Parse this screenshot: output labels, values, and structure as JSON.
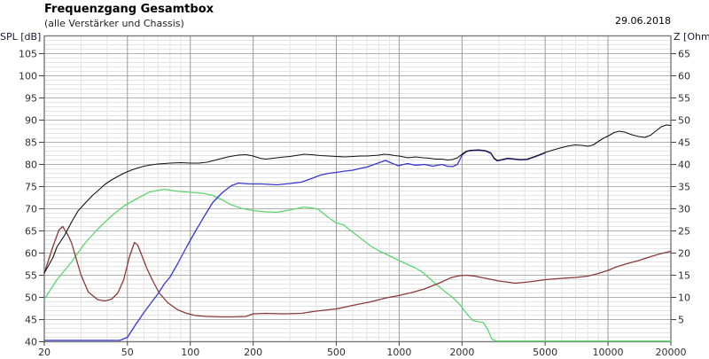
{
  "header": {
    "title": "Frequenzgang Gesamtbox",
    "subtitle": "(alle Verstärker und Chassis)",
    "date": "29.06.2018"
  },
  "axes": {
    "left_label": "SPL [dB]",
    "right_label": "Z [Ohm]"
  },
  "colors": {
    "curve_black": "#111111",
    "curve_blue": "#3838cf",
    "curve_green": "#5cd66e",
    "curve_red": "#8b3838",
    "grid_minor": "#e4e4e4",
    "grid_major_h": "#b2b2b2",
    "grid_major_v": "#9a9a9a",
    "frame": "#7a7a7a",
    "tick_text": "#2e2e2e"
  },
  "chart_data": {
    "type": "line",
    "title": "Frequenzgang Gesamtbox",
    "subtitle": "(alle Verstärker und Chassis)",
    "grid": true,
    "legend": "none",
    "x_axis": {
      "scale": "log",
      "min": 20,
      "max": 20000,
      "ticks": [
        20,
        50,
        100,
        200,
        500,
        1000,
        2000,
        5000,
        10000,
        20000
      ],
      "tick_labels": [
        "20",
        "50",
        "100",
        "200",
        "500",
        "1000",
        "2000",
        "5000",
        "10000",
        "20000"
      ],
      "minor_gridlines": [
        30,
        40,
        60,
        70,
        80,
        90,
        300,
        400,
        600,
        700,
        800,
        900,
        3000,
        4000,
        6000,
        7000,
        8000,
        9000
      ]
    },
    "y_axis_left": {
      "label": "SPL [dB]",
      "min": 40,
      "max": 109,
      "ticks": [
        40,
        45,
        50,
        55,
        60,
        65,
        70,
        75,
        80,
        85,
        90,
        95,
        100,
        105
      ]
    },
    "y_axis_right": {
      "label": "Z [Ohm]",
      "relation_offset": 40,
      "ticks": [
        5,
        10,
        15,
        20,
        25,
        30,
        35,
        40,
        45,
        50,
        55,
        60,
        65
      ]
    },
    "series": [
      {
        "name": "lowpass-green",
        "color": "#5cd66e",
        "axis": "left",
        "points": [
          [
            20,
            49.6
          ],
          [
            23,
            54
          ],
          [
            27,
            58
          ],
          [
            31,
            62
          ],
          [
            36,
            65.4
          ],
          [
            42,
            68.4
          ],
          [
            48,
            70.6
          ],
          [
            56,
            72.4
          ],
          [
            64,
            73.8
          ],
          [
            75,
            74.4
          ],
          [
            85,
            74.0
          ],
          [
            100,
            73.7
          ],
          [
            115,
            73.5
          ],
          [
            128,
            73.0
          ],
          [
            145,
            71.8
          ],
          [
            155,
            71.0
          ],
          [
            175,
            70.1
          ],
          [
            200,
            69.6
          ],
          [
            230,
            69.3
          ],
          [
            260,
            69.2
          ],
          [
            290,
            69.6
          ],
          [
            320,
            70.0
          ],
          [
            350,
            70.4
          ],
          [
            380,
            70.2
          ],
          [
            410,
            69.9
          ],
          [
            450,
            68.3
          ],
          [
            500,
            66.8
          ],
          [
            540,
            66.4
          ],
          [
            600,
            64.7
          ],
          [
            660,
            63.2
          ],
          [
            730,
            61.6
          ],
          [
            800,
            60.5
          ],
          [
            880,
            59.6
          ],
          [
            990,
            58.4
          ],
          [
            1100,
            57.4
          ],
          [
            1200,
            56.6
          ],
          [
            1300,
            55.6
          ],
          [
            1450,
            53.6
          ],
          [
            1600,
            51.9
          ],
          [
            1700,
            50.9
          ],
          [
            1800,
            50.0
          ],
          [
            1950,
            48.4
          ],
          [
            2100,
            46.4
          ],
          [
            2250,
            44.8
          ],
          [
            2400,
            44.5
          ],
          [
            2520,
            44.4
          ],
          [
            2650,
            42.8
          ],
          [
            2780,
            40.6
          ],
          [
            2900,
            40.15
          ],
          [
            20000,
            40.15
          ]
        ]
      },
      {
        "name": "impedance-red",
        "color": "#8b3838",
        "axis": "right",
        "points": [
          [
            20,
            15.5
          ],
          [
            22,
            21.5
          ],
          [
            23.5,
            25.2
          ],
          [
            24.5,
            26.0
          ],
          [
            26,
            24.0
          ],
          [
            27,
            22.3
          ],
          [
            30,
            15.0
          ],
          [
            32.5,
            11.2
          ],
          [
            36,
            9.5
          ],
          [
            39,
            9.2
          ],
          [
            42,
            9.6
          ],
          [
            45,
            11.0
          ],
          [
            48,
            14.0
          ],
          [
            51,
            19.0
          ],
          [
            54,
            22.4
          ],
          [
            56,
            21.8
          ],
          [
            58,
            20.0
          ],
          [
            62,
            16.5
          ],
          [
            66,
            13.8
          ],
          [
            71,
            11.0
          ],
          [
            78,
            8.8
          ],
          [
            87,
            7.2
          ],
          [
            96,
            6.4
          ],
          [
            106,
            5.9
          ],
          [
            120,
            5.7
          ],
          [
            140,
            5.6
          ],
          [
            160,
            5.6
          ],
          [
            185,
            5.7
          ],
          [
            200,
            6.3
          ],
          [
            230,
            6.4
          ],
          [
            280,
            6.3
          ],
          [
            340,
            6.4
          ],
          [
            400,
            6.9
          ],
          [
            500,
            7.4
          ],
          [
            600,
            8.2
          ],
          [
            730,
            9.0
          ],
          [
            870,
            9.9
          ],
          [
            990,
            10.4
          ],
          [
            1150,
            11.1
          ],
          [
            1320,
            11.9
          ],
          [
            1550,
            13.2
          ],
          [
            1780,
            14.5
          ],
          [
            1950,
            14.9
          ],
          [
            2100,
            15.0
          ],
          [
            2300,
            14.8
          ],
          [
            2600,
            14.3
          ],
          [
            3000,
            13.7
          ],
          [
            3600,
            13.2
          ],
          [
            4200,
            13.5
          ],
          [
            5000,
            14.0
          ],
          [
            6000,
            14.3
          ],
          [
            7000,
            14.5
          ],
          [
            8000,
            14.8
          ],
          [
            9000,
            15.4
          ],
          [
            10000,
            16.1
          ],
          [
            11000,
            16.9
          ],
          [
            12500,
            17.7
          ],
          [
            14000,
            18.3
          ],
          [
            16000,
            19.2
          ],
          [
            18000,
            19.9
          ],
          [
            20000,
            20.4
          ]
        ]
      },
      {
        "name": "highpass-blue",
        "color": "#3838cf",
        "axis": "left",
        "points": [
          [
            20,
            40.3
          ],
          [
            46,
            40.3
          ],
          [
            50,
            41.0
          ],
          [
            55,
            44.0
          ],
          [
            60,
            46.6
          ],
          [
            65,
            48.8
          ],
          [
            70,
            50.8
          ],
          [
            75,
            53.0
          ],
          [
            80,
            54.6
          ],
          [
            87,
            57.6
          ],
          [
            96,
            61.4
          ],
          [
            106,
            65.0
          ],
          [
            117,
            68.4
          ],
          [
            128,
            71.4
          ],
          [
            142,
            73.6
          ],
          [
            157,
            75.2
          ],
          [
            170,
            75.8
          ],
          [
            190,
            75.6
          ],
          [
            220,
            75.6
          ],
          [
            260,
            75.4
          ],
          [
            300,
            75.7
          ],
          [
            340,
            76.0
          ],
          [
            380,
            76.8
          ],
          [
            420,
            77.6
          ],
          [
            460,
            78.0
          ],
          [
            500,
            78.2
          ],
          [
            550,
            78.5
          ],
          [
            600,
            78.7
          ],
          [
            650,
            79.1
          ],
          [
            700,
            79.4
          ],
          [
            780,
            80.2
          ],
          [
            860,
            80.9
          ],
          [
            920,
            80.3
          ],
          [
            990,
            79.7
          ],
          [
            1050,
            80.0
          ],
          [
            1100,
            80.2
          ],
          [
            1200,
            79.8
          ],
          [
            1320,
            80.0
          ],
          [
            1450,
            79.6
          ],
          [
            1600,
            80.0
          ],
          [
            1700,
            79.6
          ],
          [
            1800,
            79.5
          ],
          [
            1900,
            80.0
          ],
          [
            2000,
            82.1
          ],
          [
            2100,
            82.9
          ],
          [
            2200,
            83.1
          ],
          [
            2400,
            83.2
          ],
          [
            2600,
            83.0
          ],
          [
            2750,
            82.5
          ],
          [
            2850,
            81.3
          ],
          [
            2950,
            80.8
          ],
          [
            3100,
            81.0
          ],
          [
            3300,
            81.3
          ],
          [
            3500,
            81.2
          ],
          [
            3800,
            81.0
          ],
          [
            4100,
            81.1
          ],
          [
            4400,
            81.6
          ],
          [
            4700,
            82.1
          ],
          [
            5000,
            82.6
          ]
        ]
      },
      {
        "name": "sum-black",
        "color": "#111111",
        "axis": "left",
        "points": [
          [
            20,
            55.5
          ],
          [
            22,
            59.0
          ],
          [
            23,
            61.4
          ],
          [
            25,
            64.0
          ],
          [
            27,
            67.0
          ],
          [
            29,
            69.5
          ],
          [
            31,
            71.0
          ],
          [
            34,
            73.0
          ],
          [
            36,
            74.0
          ],
          [
            39,
            75.5
          ],
          [
            42,
            76.5
          ],
          [
            45,
            77.3
          ],
          [
            48,
            78.0
          ],
          [
            52,
            78.7
          ],
          [
            56,
            79.2
          ],
          [
            60,
            79.6
          ],
          [
            65,
            79.9
          ],
          [
            70,
            80.1
          ],
          [
            75,
            80.2
          ],
          [
            80,
            80.3
          ],
          [
            90,
            80.4
          ],
          [
            100,
            80.3
          ],
          [
            110,
            80.3
          ],
          [
            120,
            80.5
          ],
          [
            130,
            80.9
          ],
          [
            140,
            81.3
          ],
          [
            155,
            81.8
          ],
          [
            170,
            82.1
          ],
          [
            185,
            82.2
          ],
          [
            200,
            81.9
          ],
          [
            215,
            81.4
          ],
          [
            230,
            81.2
          ],
          [
            250,
            81.4
          ],
          [
            270,
            81.6
          ],
          [
            300,
            81.8
          ],
          [
            330,
            82.1
          ],
          [
            350,
            82.3
          ],
          [
            380,
            82.2
          ],
          [
            420,
            82.0
          ],
          [
            460,
            81.9
          ],
          [
            500,
            81.8
          ],
          [
            550,
            81.7
          ],
          [
            600,
            81.8
          ],
          [
            650,
            81.9
          ],
          [
            700,
            81.9
          ],
          [
            750,
            82.0
          ],
          [
            800,
            82.1
          ],
          [
            850,
            82.3
          ],
          [
            900,
            82.2
          ],
          [
            950,
            82.0
          ],
          [
            1000,
            81.9
          ],
          [
            1100,
            81.5
          ],
          [
            1200,
            81.7
          ],
          [
            1300,
            81.5
          ],
          [
            1400,
            81.4
          ],
          [
            1500,
            81.2
          ],
          [
            1600,
            81.2
          ],
          [
            1700,
            81.0
          ],
          [
            1800,
            81.1
          ],
          [
            1900,
            81.5
          ],
          [
            2000,
            82.3
          ],
          [
            2100,
            83.0
          ],
          [
            2200,
            83.2
          ],
          [
            2400,
            83.3
          ],
          [
            2600,
            83.1
          ],
          [
            2750,
            82.6
          ],
          [
            2850,
            81.4
          ],
          [
            2950,
            80.9
          ],
          [
            3100,
            81.1
          ],
          [
            3300,
            81.4
          ],
          [
            3500,
            81.3
          ],
          [
            3800,
            81.1
          ],
          [
            4100,
            81.2
          ],
          [
            4400,
            81.7
          ],
          [
            4700,
            82.2
          ],
          [
            5000,
            82.7
          ],
          [
            5500,
            83.3
          ],
          [
            6000,
            83.8
          ],
          [
            6500,
            84.2
          ],
          [
            7000,
            84.4
          ],
          [
            7500,
            84.3
          ],
          [
            8000,
            84.1
          ],
          [
            8500,
            84.4
          ],
          [
            9000,
            85.2
          ],
          [
            9500,
            85.9
          ],
          [
            10000,
            86.4
          ],
          [
            10700,
            87.2
          ],
          [
            11300,
            87.5
          ],
          [
            12000,
            87.3
          ],
          [
            13000,
            86.7
          ],
          [
            14000,
            86.3
          ],
          [
            15000,
            86.1
          ],
          [
            16000,
            86.6
          ],
          [
            17000,
            87.6
          ],
          [
            18000,
            88.5
          ],
          [
            19000,
            88.9
          ],
          [
            20000,
            88.8
          ]
        ]
      }
    ]
  }
}
